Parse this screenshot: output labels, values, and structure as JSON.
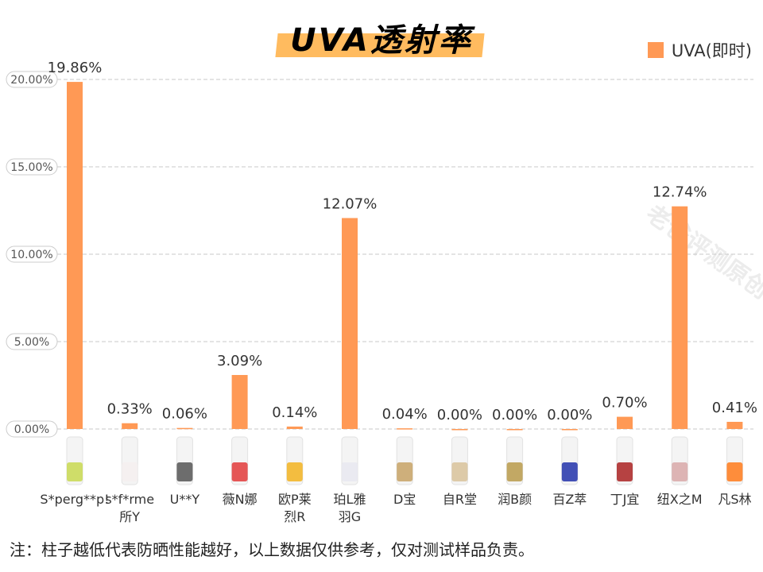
{
  "chart_data": {
    "type": "bar",
    "title": "UVA透射率",
    "categories": [
      "S*perg**p!",
      "s*f*rme\n所Y",
      "U**Y",
      "薇N娜",
      "欧P莱\n烈R",
      "珀L雅\n羽G",
      "D宝",
      "自R堂",
      "润B颜",
      "百Z萃",
      "丁J宜",
      "纽X之M",
      "凡S林"
    ],
    "series": [
      {
        "name": "UVA(即时)",
        "values": [
          19.86,
          0.33,
          0.06,
          3.09,
          0.14,
          12.07,
          0.04,
          0.0,
          0.0,
          0.0,
          0.7,
          12.74,
          0.41
        ]
      }
    ],
    "data_labels": [
      "19.86%",
      "0.33%",
      "0.06%",
      "3.09%",
      "0.14%",
      "12.07%",
      "0.04%",
      "0.00%",
      "0.00%",
      "0.00%",
      "0.70%",
      "12.74%",
      "0.41%"
    ],
    "yticks": [
      "0.00%",
      "5.00%",
      "10.00%",
      "15.00%",
      "20.00%"
    ],
    "ylim": [
      0,
      20
    ],
    "grid": true,
    "legend_position": "top-right",
    "bar_color": "#ff9955"
  },
  "product_colors": [
    "#c8d850",
    "#f4eeee",
    "#555555",
    "#e23a3a",
    "#f2b320",
    "#e8e8f0",
    "#c7a265",
    "#d8c29a",
    "#b89a4a",
    "#2233aa",
    "#aa2222",
    "#d8a8a8",
    "#ff7a1a"
  ],
  "note": "注：柱子越低代表防晒性能越好，以上数据仅供参考，仅对测试样品负责。",
  "watermark": "老爸评测原创 盗图必究"
}
